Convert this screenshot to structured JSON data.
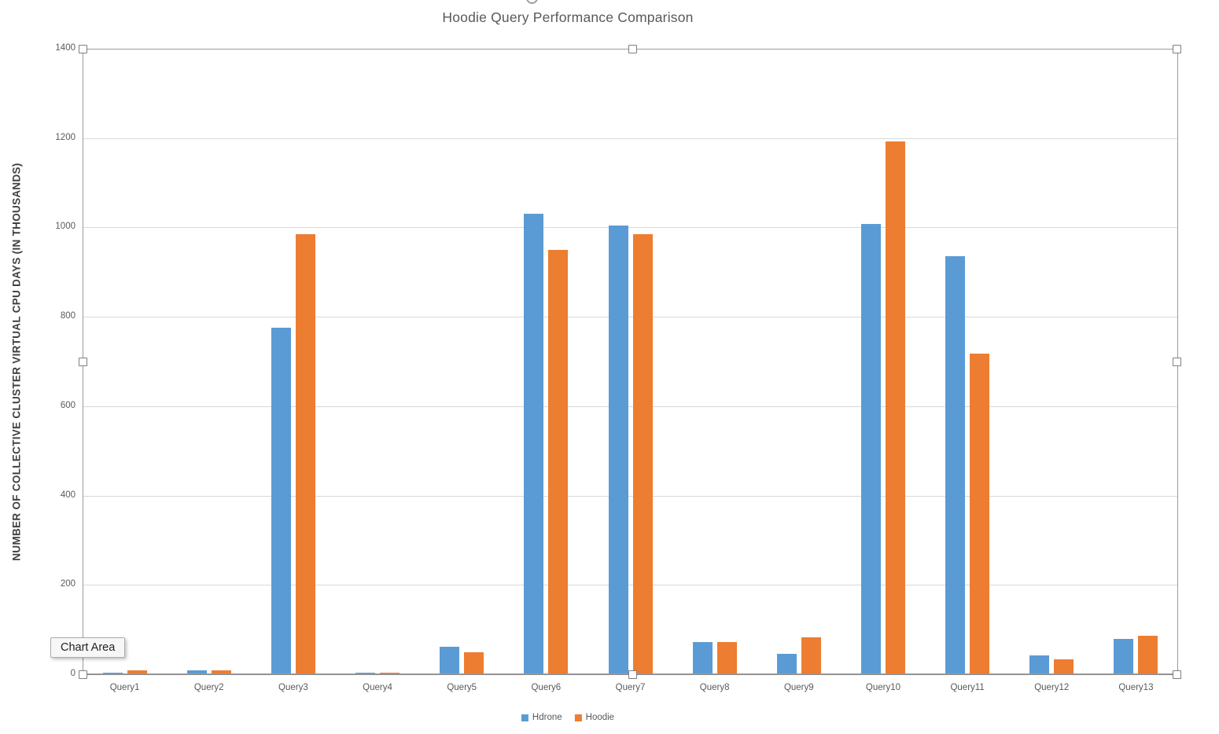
{
  "chart_data": {
    "type": "bar",
    "title": "Hoodie Query Performance Comparison",
    "xlabel": "",
    "ylabel": "NUMBER OF COLLECTIVE CLUSTER VIRTUAL CPU DAYS (IN THOUSANDS)",
    "categories": [
      "Query1",
      "Query2",
      "Query3",
      "Query4",
      "Query5",
      "Query6",
      "Query7",
      "Query8",
      "Query9",
      "Query10",
      "Query11",
      "Query12",
      "Query13"
    ],
    "series": [
      {
        "name": "Hdrone",
        "color": "#5B9BD5",
        "values": [
          4,
          8,
          775,
          4,
          62,
          1030,
          1005,
          73,
          46,
          1007,
          935,
          42,
          80
        ]
      },
      {
        "name": "Hoodie",
        "color": "#ED7D31",
        "values": [
          8,
          8,
          985,
          4,
          50,
          950,
          985,
          73,
          83,
          1193,
          717,
          33,
          87
        ]
      }
    ],
    "ylim": [
      0,
      1400
    ],
    "ytick_step": 200,
    "ytick_labels": [
      "0",
      "200",
      "400",
      "600",
      "800",
      "1000",
      "1200",
      "1400"
    ],
    "grid": true,
    "legend_position": "bottom",
    "gridline_color": "#d9d9d9"
  },
  "overlays": {
    "tooltip_label": "Chart Area",
    "selection": "chart-area-selected"
  }
}
